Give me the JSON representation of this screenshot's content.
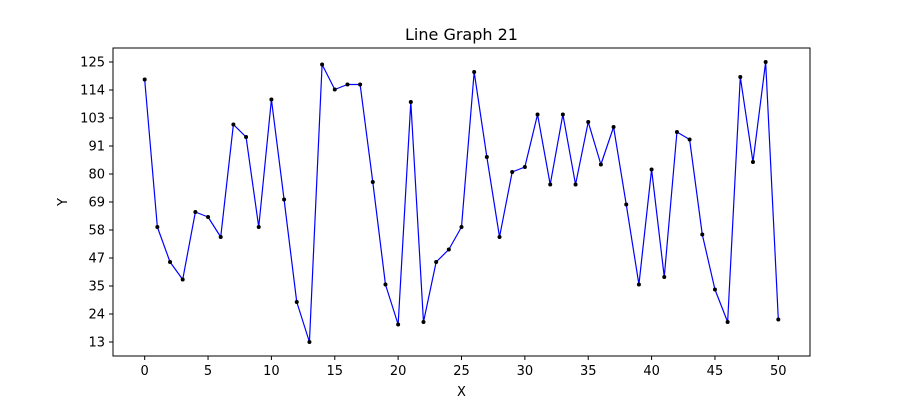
{
  "chart_data": {
    "type": "line",
    "title": "Line Graph 21",
    "xlabel": "X",
    "ylabel": "Y",
    "x": [
      0,
      1,
      2,
      3,
      4,
      5,
      6,
      7,
      8,
      9,
      10,
      11,
      12,
      13,
      14,
      15,
      16,
      17,
      18,
      19,
      20,
      21,
      22,
      23,
      24,
      25,
      26,
      27,
      28,
      29,
      30,
      31,
      32,
      33,
      34,
      35,
      36,
      37,
      38,
      39,
      40,
      41,
      42,
      43,
      44,
      45,
      46,
      47,
      48,
      49,
      50
    ],
    "series": [
      {
        "values": [
          118,
          59,
          45,
          38,
          65,
          63,
          55,
          100,
          95,
          59,
          110,
          70,
          29,
          13,
          124,
          114,
          116,
          116,
          77,
          36,
          20,
          109,
          21,
          45,
          50,
          59,
          121,
          87,
          55,
          81,
          83,
          104,
          76,
          104,
          76,
          101,
          84,
          99,
          68,
          36,
          82,
          39,
          97,
          94,
          56,
          34,
          21,
          119,
          85,
          125,
          22
        ],
        "color": "#0000ff",
        "marker_color": "#000000"
      }
    ],
    "xticks": [
      "0",
      "5",
      "10",
      "15",
      "20",
      "25",
      "30",
      "35",
      "40",
      "45",
      "50"
    ],
    "xtick_values": [
      0,
      5,
      10,
      15,
      20,
      25,
      30,
      35,
      40,
      45,
      50
    ],
    "yticks": [
      "13",
      "24",
      "35",
      "47",
      "58",
      "69",
      "80",
      "91",
      "103",
      "114",
      "125"
    ],
    "ytick_values": [
      13,
      24.2,
      35.4,
      46.6,
      57.8,
      69,
      80.2,
      91.4,
      102.6,
      113.8,
      125
    ],
    "xlim": [
      -2.5,
      52.5
    ],
    "ylim": [
      7.4,
      130.6
    ],
    "grid": false,
    "legend": "none"
  }
}
